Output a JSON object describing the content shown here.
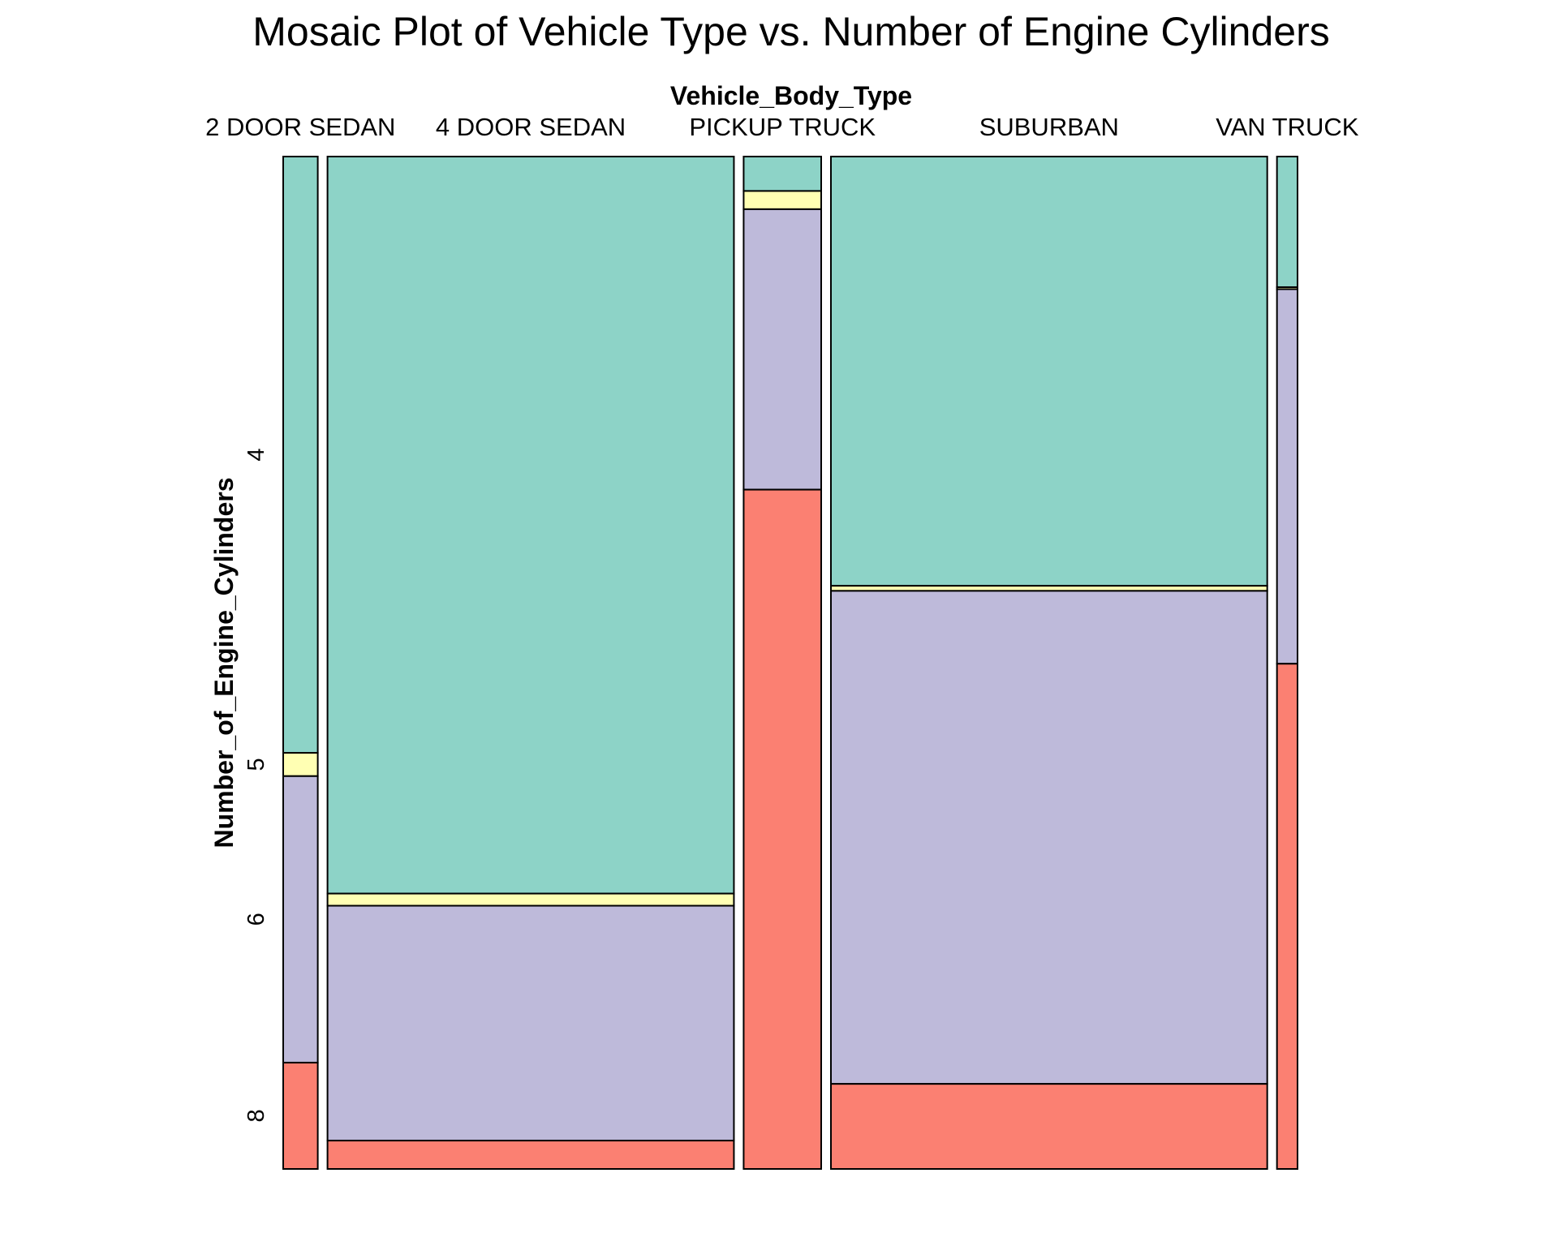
{
  "chart_data": {
    "type": "mosaic",
    "title": "Mosaic Plot of Vehicle Type vs. Number of Engine Cylinders",
    "xlabel": "Vehicle_Body_Type",
    "ylabel": "Number_of_Engine_Cylinders",
    "categories": [
      "2 DOOR SEDAN",
      "4 DOOR SEDAN",
      "PICKUP TRUCK",
      "SUBURBAN",
      "VAN TRUCK"
    ],
    "category_share": [
      0.037,
      0.435,
      0.083,
      0.467,
      0.022
    ],
    "levels": [
      "4",
      "5",
      "6",
      "8"
    ],
    "level_colors": [
      "#8DD3C7",
      "#FFFFB3",
      "#BEBADA",
      "#FB8072"
    ],
    "series": [
      {
        "name": "4",
        "values": [
          0.589,
          0.728,
          0.034,
          0.424,
          0.129
        ]
      },
      {
        "name": "5",
        "values": [
          0.023,
          0.012,
          0.018,
          0.005,
          0.002
        ]
      },
      {
        "name": "6",
        "values": [
          0.283,
          0.232,
          0.277,
          0.487,
          0.37
        ]
      },
      {
        "name": "8",
        "values": [
          0.105,
          0.028,
          0.671,
          0.084,
          0.499
        ]
      }
    ],
    "legend": "none",
    "grid": false
  }
}
